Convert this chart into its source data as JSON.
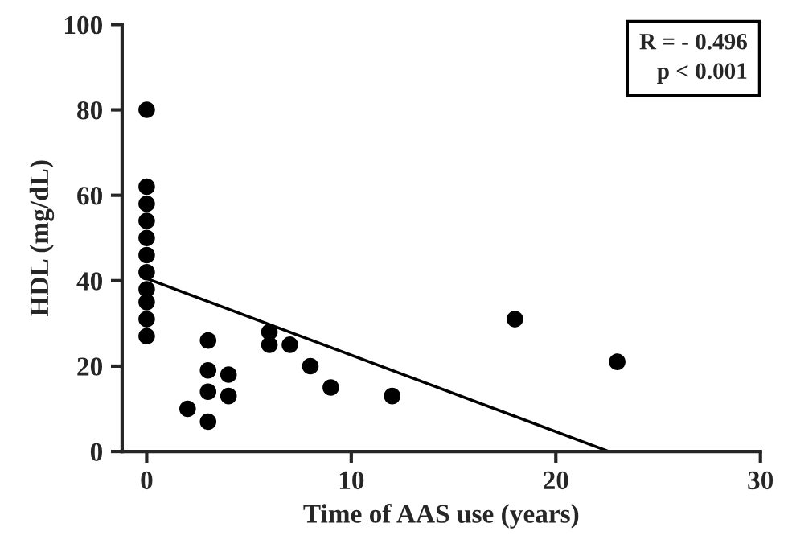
{
  "chart_data": {
    "type": "scatter",
    "xlabel": "Time of AAS use (years)",
    "ylabel": "HDL (mg/dL)",
    "annotations": [
      "R = - 0.496\np < 0.001"
    ],
    "xlim": [
      -1.2,
      30
    ],
    "xticks": [
      0,
      10,
      20,
      30
    ],
    "ylim": [
      0,
      100
    ],
    "yticks": [
      0,
      20,
      40,
      60,
      80,
      100
    ],
    "grid": false,
    "marker": "circle",
    "series": [
      {
        "color": "#000000",
        "x": [
          0,
          0,
          0,
          0,
          0,
          0,
          0,
          0,
          0,
          0,
          0,
          2,
          3,
          3,
          3,
          3,
          4,
          4,
          6,
          6,
          7,
          8,
          9,
          12,
          18,
          23
        ],
        "values": [
          80,
          62,
          58,
          54,
          50,
          46,
          42,
          38,
          35,
          31,
          27,
          10,
          26,
          19,
          14,
          7,
          18,
          13,
          28,
          25,
          25,
          20,
          15,
          13,
          31,
          21
        ]
      },
      {
        "type": "line",
        "color": "#000000",
        "marker": "none",
        "x": [
          0,
          22.6
        ],
        "values": [
          40.5,
          0
        ]
      }
    ]
  }
}
